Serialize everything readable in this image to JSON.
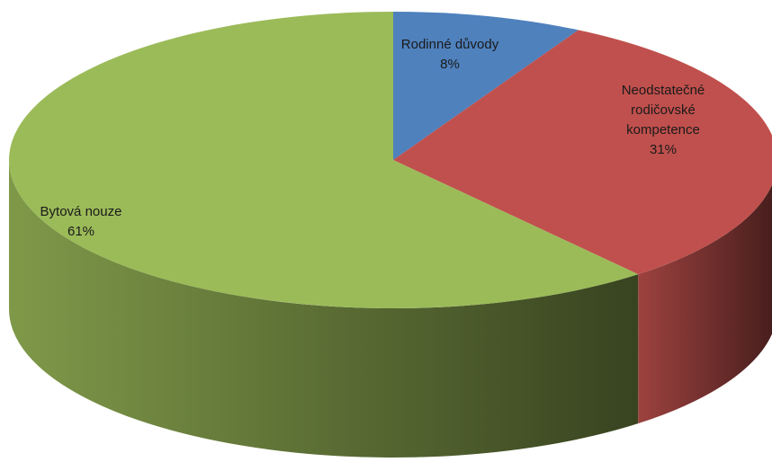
{
  "chart_data": {
    "type": "pie",
    "style": "3d",
    "title": "",
    "legend": "none",
    "slices": [
      {
        "label_lines": [
          "Rodinné důvody"
        ],
        "value": 8,
        "value_label": "8%",
        "color": "#4f81bd"
      },
      {
        "label_lines": [
          "Neodstatečné",
          "rodičovské",
          "kompetence"
        ],
        "value": 31,
        "value_label": "31%",
        "color": "#c0504d"
      },
      {
        "label_lines": [
          "Bytová nouze"
        ],
        "value": 61,
        "value_label": "61%",
        "color": "#9bbb59"
      }
    ]
  }
}
